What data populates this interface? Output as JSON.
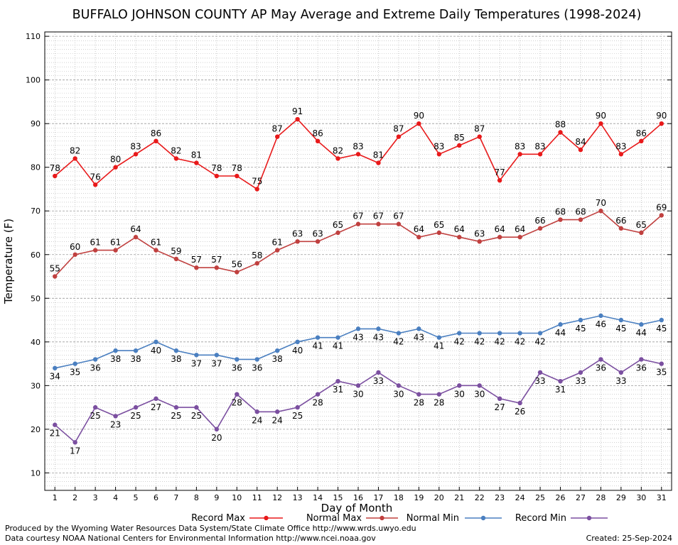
{
  "chart_data": {
    "type": "line",
    "title": "BUFFALO JOHNSON COUNTY AP May Average and Extreme Daily Temperatures (1998-2024)",
    "xlabel": "Day of Month",
    "ylabel": "Temperature (F)",
    "ylim": [
      6,
      111
    ],
    "yticks": [
      10,
      20,
      30,
      40,
      50,
      60,
      70,
      80,
      90,
      100,
      110
    ],
    "categories": [
      "1",
      "2",
      "3",
      "4",
      "5",
      "6",
      "7",
      "8",
      "9",
      "10",
      "11",
      "12",
      "13",
      "14",
      "15",
      "16",
      "17",
      "18",
      "19",
      "20",
      "21",
      "22",
      "23",
      "24",
      "25",
      "26",
      "27",
      "28",
      "29",
      "30",
      "31"
    ],
    "grid": true,
    "legend_position": "bottom",
    "series": [
      {
        "name": "Record Max",
        "color": "#e8191a",
        "label_pos": "above",
        "values": [
          78,
          82,
          76,
          80,
          83,
          86,
          82,
          81,
          78,
          78,
          75,
          87,
          91,
          86,
          82,
          83,
          81,
          87,
          90,
          83,
          85,
          87,
          77,
          83,
          83,
          88,
          84,
          90,
          83,
          86,
          90
        ]
      },
      {
        "name": "Normal Max",
        "color": "#c0403f",
        "label_pos": "above",
        "values": [
          55,
          60,
          61,
          61,
          64,
          61,
          59,
          57,
          57,
          56,
          58,
          61,
          63,
          63,
          65,
          67,
          67,
          67,
          64,
          65,
          64,
          63,
          64,
          64,
          66,
          68,
          68,
          70,
          66,
          65,
          69
        ]
      },
      {
        "name": "Normal Min",
        "color": "#4a7fc0",
        "label_pos": "below",
        "values": [
          34,
          35,
          36,
          38,
          38,
          40,
          38,
          37,
          37,
          36,
          36,
          38,
          40,
          41,
          41,
          43,
          43,
          42,
          43,
          41,
          42,
          42,
          42,
          42,
          42,
          44,
          45,
          46,
          45,
          44,
          45
        ]
      },
      {
        "name": "Record Min",
        "color": "#7b4fa0",
        "label_pos": "below",
        "values": [
          21,
          17,
          25,
          23,
          25,
          27,
          25,
          25,
          20,
          28,
          24,
          24,
          25,
          28,
          31,
          30,
          33,
          30,
          28,
          28,
          30,
          30,
          27,
          26,
          33,
          31,
          33,
          36,
          33,
          36,
          35
        ]
      }
    ]
  },
  "footer": {
    "produced_by": "Produced by the Wyoming Water Resources Data System/State Climate Office http://www.wrds.uwyo.edu",
    "data_courtesy": "Data courtesy NOAA National Centers for Environmental Information http://www.ncei.noaa.gov",
    "created": "Created:  25-Sep-2024"
  }
}
